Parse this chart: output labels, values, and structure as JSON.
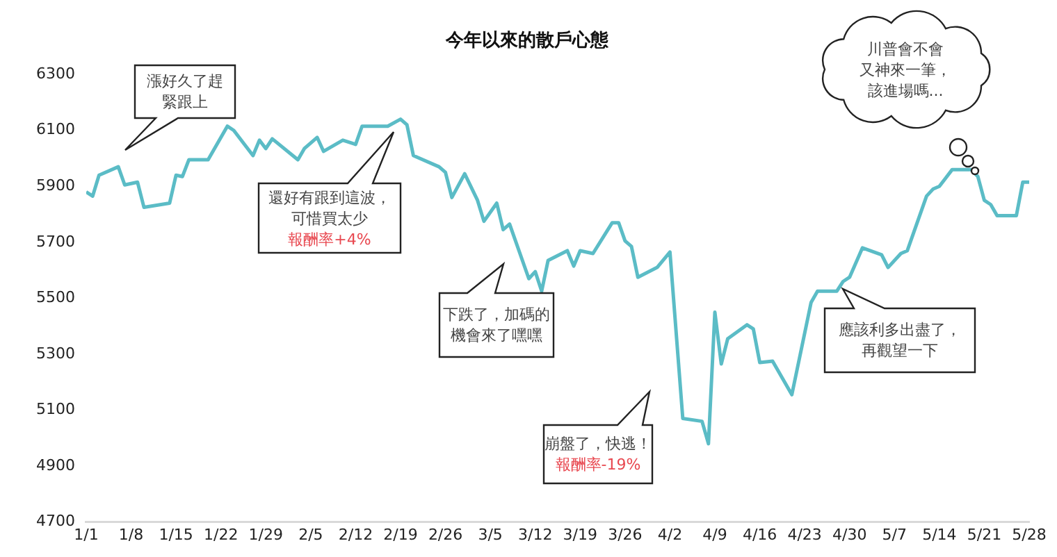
{
  "chart_data": {
    "type": "line",
    "title": "今年以來的散戶心態",
    "x": [
      "--01-01",
      "--01-02",
      "--01-03",
      "--01-06",
      "--01-07",
      "--01-09",
      "--01-10",
      "--01-14",
      "--01-15",
      "--01-16",
      "--01-17",
      "--01-20",
      "--01-23",
      "--01-24",
      "--01-27",
      "--01-28",
      "--01-29",
      "--01-30",
      "--02-03",
      "--02-04",
      "--02-06",
      "--02-07",
      "--02-10",
      "--02-12",
      "--02-13",
      "--02-17",
      "--02-19",
      "--02-20",
      "--02-21",
      "--02-25",
      "--02-26",
      "--02-27",
      "--03-01",
      "--03-03",
      "--03-04",
      "--03-06",
      "--03-07",
      "--03-08",
      "--03-11",
      "--03-12",
      "--03-13",
      "--03-14",
      "--03-17",
      "--03-18",
      "--03-19",
      "--03-21",
      "--03-24",
      "--03-25",
      "--03-26",
      "--03-27",
      "--03-28",
      "--03-31",
      "--04-02",
      "--04-04",
      "--04-07",
      "--04-08",
      "--04-09",
      "--04-10",
      "--04-11",
      "--04-14",
      "--04-15",
      "--04-16",
      "--04-18",
      "--04-21",
      "--04-24",
      "--04-25",
      "--04-28",
      "--04-29",
      "--04-30",
      "--05-02",
      "--05-05",
      "--05-06",
      "--05-08",
      "--05-09",
      "--05-12",
      "--05-13",
      "--05-14",
      "--05-16",
      "--05-19",
      "--05-20",
      "--05-21",
      "--05-22",
      "--05-23",
      "--05-26",
      "--05-27",
      "--05-28"
    ],
    "series": [
      {
        "color": "#5bbcc6",
        "values": [
          5880,
          5865,
          5940,
          5970,
          5905,
          5915,
          5825,
          5840,
          5940,
          5935,
          5995,
          5995,
          6115,
          6100,
          6010,
          6065,
          6035,
          6070,
          5995,
          6035,
          6075,
          6025,
          6065,
          6050,
          6115,
          6115,
          6140,
          6120,
          6010,
          5970,
          5950,
          5860,
          5945,
          5850,
          5775,
          5840,
          5745,
          5765,
          5570,
          5595,
          5525,
          5635,
          5670,
          5615,
          5670,
          5660,
          5770,
          5770,
          5705,
          5685,
          5575,
          5610,
          5665,
          5070,
          5060,
          4980,
          5450,
          5265,
          5355,
          5405,
          5390,
          5270,
          5275,
          5155,
          5485,
          5525,
          5525,
          5560,
          5575,
          5680,
          5655,
          5610,
          5660,
          5670,
          5865,
          5890,
          5900,
          5960,
          5960,
          5935,
          5850,
          5835,
          5795,
          5795,
          5915,
          5915
        ]
      }
    ],
    "xlim": [
      "--01-01",
      "--05-28"
    ],
    "xticks": [
      {
        "value": "--01-01",
        "label": "1/1"
      },
      {
        "value": "--01-08",
        "label": "1/8"
      },
      {
        "value": "--01-15",
        "label": "1/15"
      },
      {
        "value": "--01-22",
        "label": "1/22"
      },
      {
        "value": "--01-29",
        "label": "1/29"
      },
      {
        "value": "--02-05",
        "label": "2/5"
      },
      {
        "value": "--02-12",
        "label": "2/12"
      },
      {
        "value": "--02-19",
        "label": "2/19"
      },
      {
        "value": "--02-26",
        "label": "2/26"
      },
      {
        "value": "--03-05",
        "label": "3/5"
      },
      {
        "value": "--03-12",
        "label": "3/12"
      },
      {
        "value": "--03-19",
        "label": "3/19"
      },
      {
        "value": "--03-26",
        "label": "3/26"
      },
      {
        "value": "--04-02",
        "label": "4/2"
      },
      {
        "value": "--04-09",
        "label": "4/9"
      },
      {
        "value": "--04-16",
        "label": "4/16"
      },
      {
        "value": "--04-23",
        "label": "4/23"
      },
      {
        "value": "--04-30",
        "label": "4/30"
      },
      {
        "value": "--05-07",
        "label": "5/7"
      },
      {
        "value": "--05-14",
        "label": "5/14"
      },
      {
        "value": "--05-21",
        "label": "5/21"
      },
      {
        "value": "--05-28",
        "label": "5/28"
      }
    ],
    "ylim": [
      4700,
      6300
    ],
    "yticks": [
      4700,
      4900,
      5100,
      5300,
      5500,
      5700,
      5900,
      6100,
      6300
    ],
    "grid": false,
    "legend": false,
    "marker": "none",
    "line_style": "solid",
    "annotations": [
      "漲好久了趕",
      "緊跟上",
      "還好有跟到這波，",
      "可惜買太少",
      "報酬率+4%",
      "下跌了，加碼的",
      "機會來了嘿嘿",
      "崩盤了，快逃！",
      "報酬率-19%",
      "應該利多出盡了，",
      "再觀望一下",
      "川普會不會",
      "又神來一筆，",
      "該進場嗎..."
    ]
  }
}
